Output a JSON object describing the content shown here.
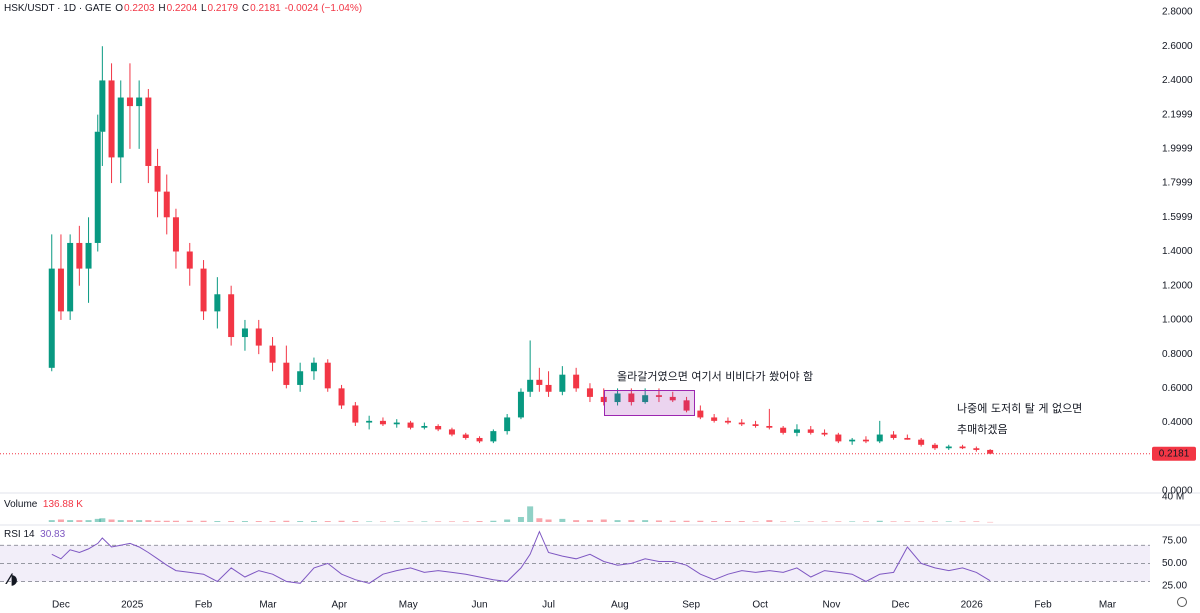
{
  "chart_data": [
    {
      "type": "candlestick",
      "title": "HSK/USDT · 1D · GATE",
      "legend": [
        {
          "label": "O",
          "value": 0.2203
        },
        {
          "label": "H",
          "value": 0.2204
        },
        {
          "label": "L",
          "value": 0.2179
        },
        {
          "label": "C",
          "value": 0.2181
        }
      ],
      "change": "-0.0024 (−1.04%)",
      "annotations": [
        "올라갈거였으면 여기서 비비다가 쐈어야 함",
        "나중에 도저히 탈 게 없으면",
        "추매하겠음"
      ],
      "colors": {
        "up": "#089981",
        "down": "#f23645"
      },
      "last_price": 0.2181,
      "xlim": [
        -26.5,
        473.5
      ],
      "xticks": [
        {
          "value": 0,
          "label": "Dec"
        },
        {
          "value": 31,
          "label": "2025"
        },
        {
          "value": 62,
          "label": "Feb"
        },
        {
          "value": 90,
          "label": "Mar"
        },
        {
          "value": 121,
          "label": "Apr"
        },
        {
          "value": 151,
          "label": "May"
        },
        {
          "value": 182,
          "label": "Jun"
        },
        {
          "value": 212,
          "label": "Jul"
        },
        {
          "value": 243,
          "label": "Aug"
        },
        {
          "value": 274,
          "label": "Sep"
        },
        {
          "value": 304,
          "label": "Oct"
        },
        {
          "value": 335,
          "label": "Nov"
        },
        {
          "value": 365,
          "label": "Dec"
        },
        {
          "value": 396,
          "label": "2026"
        },
        {
          "value": 427,
          "label": "Feb"
        },
        {
          "value": 455,
          "label": "Mar"
        }
      ],
      "ylim": [
        0,
        2.8
      ],
      "yticks": [
        {
          "value": 2.8,
          "label": "2.8000"
        },
        {
          "value": 2.6,
          "label": "2.6000"
        },
        {
          "value": 2.4,
          "label": "2.4000"
        },
        {
          "value": 2.2,
          "label": "2.1999"
        },
        {
          "value": 2.0,
          "label": "1.9999"
        },
        {
          "value": 1.8,
          "label": "1.7999"
        },
        {
          "value": 1.6,
          "label": "1.5999"
        },
        {
          "value": 1.4,
          "label": "1.4000"
        },
        {
          "value": 1.2,
          "label": "1.2000"
        },
        {
          "value": 1.0,
          "label": "1.0000"
        },
        {
          "value": 0.8,
          "label": "0.8000"
        },
        {
          "value": 0.6,
          "label": "0.6000"
        },
        {
          "value": 0.4,
          "label": "0.4000"
        },
        {
          "value": 0.2,
          "label": "0.2000"
        },
        {
          "value": 0,
          "label": "0.0000"
        }
      ],
      "grid": false,
      "x": [
        -4,
        0,
        4,
        8,
        12,
        16,
        18,
        22,
        26,
        30,
        34,
        38,
        42,
        46,
        50,
        56,
        62,
        68,
        74,
        80,
        86,
        92,
        98,
        104,
        110,
        116,
        122,
        128,
        134,
        140,
        146,
        152,
        158,
        164,
        170,
        176,
        182,
        188,
        194,
        200,
        204,
        208,
        212,
        218,
        224,
        230,
        236,
        242,
        248,
        254,
        260,
        266,
        272,
        278,
        284,
        290,
        296,
        302,
        308,
        314,
        320,
        326,
        332,
        338,
        344,
        350,
        356,
        362,
        368,
        374,
        380,
        386,
        392,
        398,
        404
      ],
      "open": [
        0.72,
        1.3,
        1.05,
        1.45,
        1.3,
        1.45,
        2.1,
        2.4,
        1.95,
        2.3,
        2.25,
        2.3,
        1.9,
        1.75,
        1.6,
        1.4,
        1.3,
        1.05,
        1.15,
        0.9,
        0.95,
        0.85,
        0.75,
        0.62,
        0.7,
        0.75,
        0.6,
        0.5,
        0.4,
        0.41,
        0.39,
        0.4,
        0.37,
        0.38,
        0.36,
        0.33,
        0.31,
        0.29,
        0.35,
        0.43,
        0.58,
        0.65,
        0.62,
        0.58,
        0.68,
        0.6,
        0.55,
        0.52,
        0.57,
        0.52,
        0.56,
        0.55,
        0.53,
        0.47,
        0.43,
        0.41,
        0.4,
        0.39,
        0.38,
        0.37,
        0.34,
        0.36,
        0.34,
        0.33,
        0.29,
        0.3,
        0.29,
        0.33,
        0.31,
        0.3,
        0.27,
        0.25,
        0.26,
        0.25,
        0.24
      ],
      "high": [
        1.5,
        1.5,
        1.5,
        1.55,
        1.6,
        2.2,
        2.6,
        2.5,
        2.4,
        2.5,
        2.4,
        2.35,
        2.0,
        1.85,
        1.65,
        1.45,
        1.35,
        1.25,
        1.2,
        1.0,
        1.0,
        0.9,
        0.85,
        0.75,
        0.78,
        0.77,
        0.62,
        0.52,
        0.44,
        0.43,
        0.42,
        0.41,
        0.4,
        0.39,
        0.37,
        0.34,
        0.32,
        0.36,
        0.45,
        0.6,
        0.88,
        0.72,
        0.7,
        0.73,
        0.72,
        0.63,
        0.6,
        0.6,
        0.6,
        0.6,
        0.6,
        0.58,
        0.55,
        0.5,
        0.45,
        0.43,
        0.42,
        0.41,
        0.48,
        0.38,
        0.39,
        0.38,
        0.36,
        0.34,
        0.31,
        0.32,
        0.41,
        0.35,
        0.33,
        0.31,
        0.28,
        0.27,
        0.27,
        0.26,
        0.245
      ],
      "low": [
        0.7,
        1.0,
        1.0,
        1.2,
        1.1,
        1.4,
        1.9,
        1.8,
        1.8,
        2.0,
        2.0,
        1.8,
        1.6,
        1.5,
        1.3,
        1.2,
        1.0,
        0.95,
        0.85,
        0.82,
        0.8,
        0.7,
        0.6,
        0.58,
        0.65,
        0.58,
        0.48,
        0.38,
        0.36,
        0.38,
        0.37,
        0.36,
        0.36,
        0.35,
        0.32,
        0.3,
        0.28,
        0.28,
        0.33,
        0.42,
        0.55,
        0.58,
        0.55,
        0.56,
        0.58,
        0.52,
        0.5,
        0.5,
        0.5,
        0.51,
        0.52,
        0.52,
        0.46,
        0.42,
        0.4,
        0.39,
        0.38,
        0.37,
        0.36,
        0.33,
        0.32,
        0.33,
        0.32,
        0.28,
        0.27,
        0.28,
        0.28,
        0.3,
        0.3,
        0.26,
        0.24,
        0.24,
        0.245,
        0.23,
        0.215
      ],
      "close": [
        1.3,
        1.05,
        1.45,
        1.3,
        1.45,
        2.1,
        2.4,
        1.95,
        2.3,
        2.25,
        2.3,
        1.9,
        1.75,
        1.6,
        1.4,
        1.3,
        1.05,
        1.15,
        0.9,
        0.95,
        0.85,
        0.75,
        0.62,
        0.7,
        0.75,
        0.6,
        0.5,
        0.4,
        0.41,
        0.39,
        0.4,
        0.37,
        0.38,
        0.36,
        0.33,
        0.31,
        0.29,
        0.35,
        0.43,
        0.58,
        0.65,
        0.62,
        0.58,
        0.68,
        0.6,
        0.55,
        0.52,
        0.57,
        0.52,
        0.56,
        0.55,
        0.53,
        0.47,
        0.43,
        0.41,
        0.4,
        0.39,
        0.38,
        0.37,
        0.34,
        0.36,
        0.34,
        0.33,
        0.29,
        0.3,
        0.29,
        0.33,
        0.31,
        0.3,
        0.27,
        0.25,
        0.26,
        0.25,
        0.24,
        0.2181
      ]
    },
    {
      "type": "bar",
      "title": "Volume",
      "legend_value": "136.88 K",
      "ylim": [
        0,
        40
      ],
      "yticks": [
        {
          "value": 40,
          "label": "40 M"
        }
      ],
      "values": [
        3,
        4,
        3,
        3,
        3,
        5,
        6,
        4,
        3,
        3,
        3,
        3,
        2,
        2,
        2,
        2,
        2,
        1.5,
        1.5,
        1.5,
        1.5,
        1.5,
        2,
        1.5,
        1.5,
        1.5,
        2,
        1.5,
        1,
        1,
        1,
        1,
        1,
        1,
        1,
        1,
        1.5,
        2,
        4,
        8,
        25,
        6,
        4,
        5,
        3,
        3,
        4,
        3,
        3,
        3,
        2.5,
        2,
        2,
        2,
        1.5,
        1.5,
        1.5,
        1,
        3,
        1,
        1,
        1,
        1,
        1,
        1,
        1,
        2,
        1,
        1,
        1,
        1,
        1,
        1,
        1,
        0.13688
      ]
    },
    {
      "type": "line",
      "title": "RSI 14",
      "color": "#7e57c2",
      "ylim": [
        14,
        89
      ],
      "yticks": [
        {
          "value": 75,
          "label": "75.00"
        },
        {
          "value": 50,
          "label": "50.00"
        },
        {
          "value": 25,
          "label": "25.00"
        }
      ],
      "levels": [
        30,
        50,
        70
      ],
      "values": [
        60,
        55,
        65,
        62,
        66,
        72,
        78,
        68,
        70,
        72,
        68,
        62,
        55,
        48,
        42,
        40,
        38,
        30,
        45,
        35,
        42,
        38,
        30,
        28,
        45,
        50,
        38,
        32,
        28,
        38,
        42,
        45,
        40,
        42,
        40,
        38,
        35,
        32,
        30,
        45,
        60,
        85,
        62,
        58,
        55,
        60,
        52,
        48,
        50,
        55,
        52,
        52,
        48,
        38,
        32,
        38,
        42,
        40,
        42,
        40,
        45,
        35,
        42,
        40,
        38,
        30,
        38,
        40,
        68,
        50,
        45,
        42,
        45,
        40,
        30.83
      ]
    }
  ]
}
